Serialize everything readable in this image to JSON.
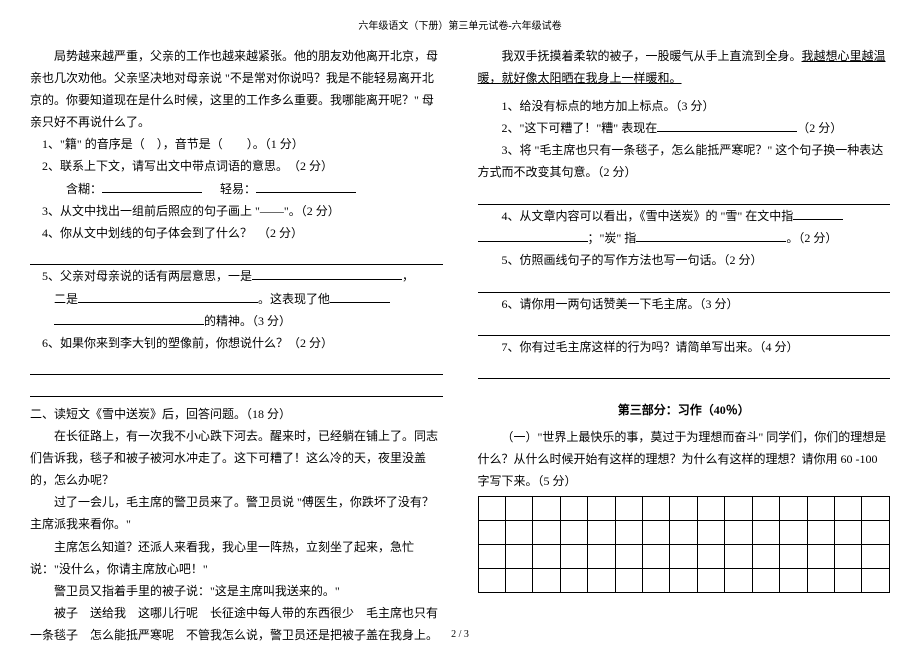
{
  "header": "六年级语文（下册）第三单元试卷-六年级试卷",
  "footer": "2 / 3",
  "left": {
    "p1": "局势越来越严重，父亲的工作也越来越紧张。他的朋友劝他离开北京，母亲也几次劝他。父亲坚决地对母亲说 \"不是常对你说吗？我是不能轻易离开北京的。你要知道现在是什么时候，这里的工作多么重要。我哪能离开呢？\" 母亲只好不再说什么了。",
    "q1": "1、\"籍\" 的音序是（　），音节是（　　）。（1 分）",
    "q2": "2、联系上下文，请写出文中带点词语的意思。　（2 分）",
    "q2a": "含糊：",
    "q2b": "轻易：",
    "q3": "3、从文中找出一组前后照应的句子画上 \"——\"。（2 分）",
    "q4": "4、你从文中划线的句子体会到了什么？　（2 分）",
    "q5a": "5、父亲对母亲说的话有两层意思，一是",
    "q5b": "二是",
    "q5c": "。这表现了他",
    "q5d": "的精神。（3 分）",
    "q6": "6、如果你来到李大钊的塑像前，你想说什么？（2 分）",
    "section2title": "二、读短文《雪中送炭》后，回答问题。（18 分）",
    "s2p1": "在长征路上，有一次我不小心跌下河去。醒来时，已经躺在铺上了。同志们告诉我，毯子和被子被河水冲走了。这下可糟了！这么冷的天，夜里没盖的，怎么办呢？",
    "s2p2": "过了一会儿，毛主席的警卫员来了。警卫员说 \"傅医生，你跌坏了没有？主席派我来看你。\"",
    "s2p3": "主席怎么知道？还派人来看我，我心里一阵热，立刻坐了起来，急忙说：\"没什么，你请主席放心吧！\"",
    "s2p4": "警卫员又指着手里的被子说：\"这是主席叫我送来的。\"",
    "s2p5": "被子　送给我　这哪儿行呢　长征途中每人带的东西很少　毛主席也只有一条毯子　怎么能抵严寒呢　不管我怎么说，警卫员还是把被子盖在我身上。"
  },
  "right": {
    "p1a": "我双手抚摸着柔软的被子，一股暖气从手上直流到全身。",
    "p1b": "我越想心里越温暖，就好像太阳晒在我身上一样暖和。",
    "r1": "1、给没有标点的地方加上标点。（3 分）",
    "r2": "2、\"这下可糟了！\"糟\" 表现在",
    "r2end": "（2 分）",
    "r3": "3、将 \"毛主席也只有一条毯子，怎么能抵严寒呢？\" 这个句子换一种表达方式而不改变其句意。（2 分）",
    "r4a": "4、从文章内容可以看出，《雪中送炭》的 \"雪\" 在文中指",
    "r4b": "；\"炭\" 指",
    "r4end": "。（2 分）",
    "r5": "5、仿照画线句子的写作方法也写一句话。（2 分）",
    "r6": "6、请你用一两句话赞美一下毛主席。（3 分）",
    "r7": "7、你有过毛主席这样的行为吗？请简单写出来。（4 分）",
    "part3": "第三部分：习作（40％）",
    "essay": "（一）\"世界上最快乐的事，莫过于为理想而奋斗\" 同学们，你们的理想是什么？从什么时候开始有这样的理想？为什么有这样的理想？请你用 60 -100 字写下来。（5 分）"
  },
  "grid": {
    "rows": 4,
    "cols": 15
  },
  "style": {
    "uline_short": 70,
    "uline_med": 140,
    "uline_long": 220
  }
}
